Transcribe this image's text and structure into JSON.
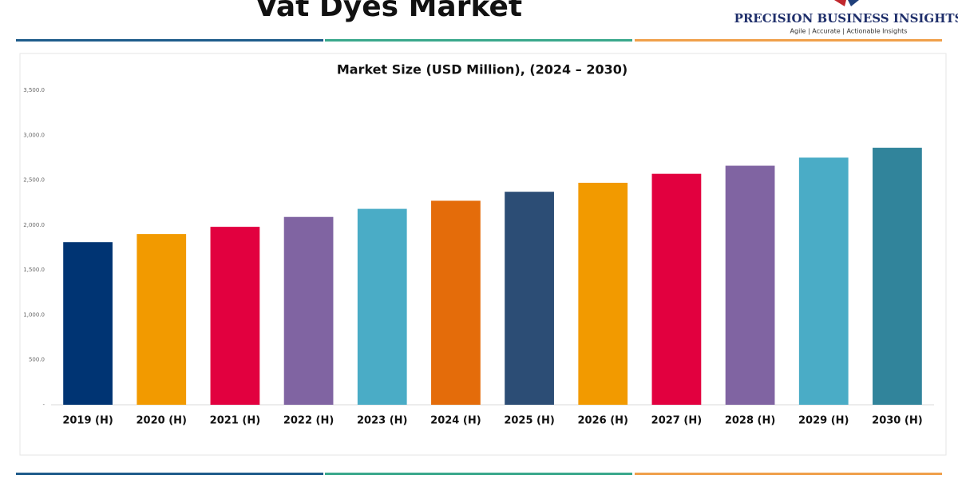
{
  "header": {
    "title": "Vat Dyes Market",
    "brand": "PRECISION BUSINESS INSIGHTS",
    "tagline": "Agile | Accurate | Actionable Insights"
  },
  "chart_data": {
    "type": "bar",
    "title": "Market Size (USD Million), (2024 – 2030)",
    "categories": [
      "2019 (H)",
      "2020 (H)",
      "2021 (H)",
      "2022 (H)",
      "2023 (H)",
      "2024 (H)",
      "2025 (H)",
      "2026 (H)",
      "2027 (H)",
      "2028 (H)",
      "2029 (H)",
      "2030 (H)"
    ],
    "values": [
      1810,
      1900,
      1980,
      2090,
      2180,
      2270,
      2370,
      2470,
      2570,
      2660,
      2750,
      2860
    ],
    "colors": [
      "#003473",
      "#f29a00",
      "#e2003f",
      "#8064a2",
      "#4aacc6",
      "#e46c0a",
      "#2c4d75",
      "#f29a00",
      "#e2003f",
      "#8064a2",
      "#4aacc6",
      "#31849b"
    ],
    "ylim": [
      0,
      3500
    ],
    "yticks": [
      {
        "value": 0,
        "label": "-"
      },
      {
        "value": 500,
        "label": "500.0"
      },
      {
        "value": 1000,
        "label": "1,000.0"
      },
      {
        "value": 1500,
        "label": "1,500.0"
      },
      {
        "value": 2000,
        "label": "2,000.0"
      },
      {
        "value": 2500,
        "label": "2,500.0"
      },
      {
        "value": 3000,
        "label": "3,000.0"
      },
      {
        "value": 3500,
        "label": "3,500.0"
      }
    ],
    "grid": false
  }
}
